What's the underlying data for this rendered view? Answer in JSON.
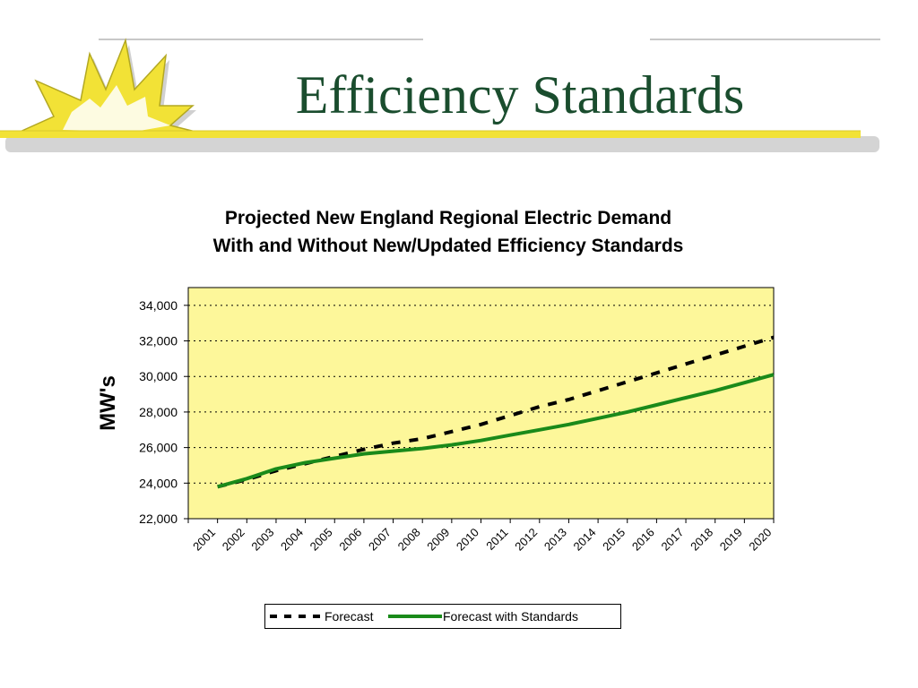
{
  "slide": {
    "title": "Efficiency Standards"
  },
  "colors": {
    "title_text": "#1a4d2e",
    "plot_background": "#fdf79a",
    "forecast_line": "#000000",
    "standards_line": "#1a8a1a",
    "logo_yellow": "#f2e236"
  },
  "chart_data": {
    "type": "line",
    "title": "Projected New England Regional Electric Demand",
    "subtitle": "With and Without New/Updated Efficiency Standards",
    "ylabel": "MW's",
    "xlabel": "",
    "ylim": [
      22000,
      35000
    ],
    "yticks": [
      22000,
      24000,
      26000,
      28000,
      30000,
      32000,
      34000
    ],
    "ytick_labels": [
      "22,000",
      "24,000",
      "26,000",
      "28,000",
      "30,000",
      "32,000",
      "34,000"
    ],
    "grid": "horizontal dotted",
    "legend_position": "bottom",
    "categories": [
      "2001",
      "2002",
      "2003",
      "2004",
      "2005",
      "2006",
      "2007",
      "2008",
      "2009",
      "2010",
      "2011",
      "2012",
      "2013",
      "2014",
      "2015",
      "2016",
      "2017",
      "2018",
      "2019",
      "2020"
    ],
    "series": [
      {
        "name": "Forecast",
        "style": "dashed",
        "color": "#000000",
        "values": [
          23800,
          24200,
          24700,
          25100,
          25500,
          25900,
          26250,
          26500,
          26900,
          27300,
          27800,
          28300,
          28700,
          29200,
          29700,
          30200,
          30700,
          31200,
          31700,
          32200
        ]
      },
      {
        "name": "Forecast with Standards",
        "style": "solid",
        "color": "#1a8a1a",
        "values": [
          23800,
          24250,
          24800,
          25150,
          25400,
          25650,
          25800,
          25950,
          26150,
          26400,
          26700,
          27000,
          27300,
          27650,
          28000,
          28400,
          28800,
          29200,
          29650,
          30100
        ]
      }
    ]
  }
}
